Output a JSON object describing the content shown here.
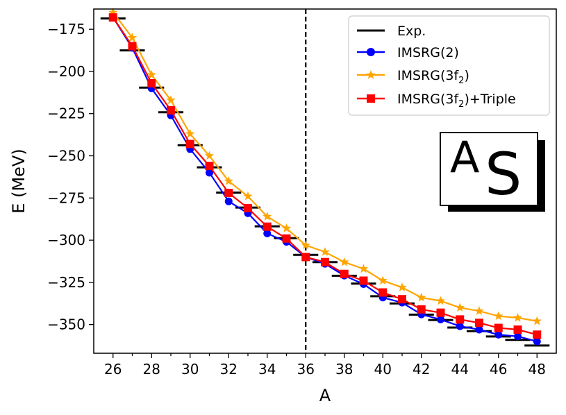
{
  "chart_data": {
    "type": "line",
    "xlabel": "A",
    "ylabel": "E (MeV)",
    "xlim": [
      25,
      49
    ],
    "ylim": [
      -367,
      -163
    ],
    "xticks": [
      26,
      28,
      30,
      32,
      34,
      36,
      38,
      40,
      42,
      44,
      46,
      48
    ],
    "yticks": [
      -175,
      -200,
      -225,
      -250,
      -275,
      -300,
      -325,
      -350
    ],
    "vline": 36,
    "legend_position": "top-right",
    "experimental": {
      "name": "Exp.",
      "color": "#000000",
      "x": [
        26,
        27,
        28,
        29,
        30,
        31,
        32,
        33,
        34,
        35,
        36,
        37,
        38,
        39,
        40,
        41,
        42,
        43,
        44,
        45,
        46,
        47,
        48
      ],
      "values": [
        -168.6,
        -187.5,
        -209.6,
        -224.2,
        -243.7,
        -256.8,
        -271.8,
        -280.7,
        -291.8,
        -298.8,
        -308.7,
        -313.0,
        -321.1,
        -325.7,
        -333.2,
        -337.5,
        -344.1,
        -347.3,
        -351.8,
        -353.9,
        -357.1,
        -359.1,
        -362.4
      ]
    },
    "series": [
      {
        "name": "IMSRG(2)",
        "color": "#0000ff",
        "marker": "circle",
        "x": [
          26,
          27,
          28,
          29,
          30,
          31,
          32,
          33,
          34,
          35,
          36,
          37,
          38,
          39,
          40,
          41,
          42,
          43,
          44,
          45,
          46,
          47,
          48
        ],
        "values": [
          -168,
          -186,
          -210,
          -226,
          -246,
          -260,
          -277,
          -284,
          -296,
          -301,
          -310,
          -314,
          -321,
          -326,
          -334,
          -337,
          -344,
          -347,
          -351,
          -353,
          -356,
          -357,
          -360
        ]
      },
      {
        "name": "IMSRG(3f2)",
        "color": "#ffa500",
        "marker": "star",
        "x": [
          26,
          27,
          28,
          29,
          30,
          31,
          32,
          33,
          34,
          35,
          36,
          37,
          38,
          39,
          40,
          41,
          42,
          43,
          44,
          45,
          46,
          47,
          48
        ],
        "values": [
          -165,
          -180,
          -202,
          -217,
          -237,
          -250,
          -265,
          -274,
          -286,
          -293,
          -303,
          -307,
          -313,
          -317,
          -324,
          -328,
          -334,
          -336,
          -340,
          -342,
          -345,
          -346,
          -348
        ]
      },
      {
        "name": "IMSRG(3f2)+Triple",
        "color": "#ff0000",
        "marker": "square",
        "x": [
          26,
          27,
          28,
          29,
          30,
          31,
          32,
          33,
          34,
          35,
          36,
          37,
          38,
          39,
          40,
          41,
          42,
          43,
          44,
          45,
          46,
          47,
          48
        ],
        "values": [
          -168,
          -185,
          -207,
          -223,
          -243,
          -256,
          -272,
          -281,
          -292,
          -299,
          -310,
          -313,
          -320,
          -324,
          -331,
          -335,
          -341,
          -343,
          -347,
          -349,
          -352,
          -353,
          -356
        ]
      }
    ],
    "legend_labels": [
      "Exp.",
      "IMSRG(2)",
      "IMSRG(3f",
      "IMSRG(3f"
    ],
    "legend_subscripts": [
      "",
      "",
      "2",
      "2"
    ],
    "legend_suffixes": [
      "",
      "",
      ")",
      ")+Triple"
    ],
    "logo": {
      "superscript": "A",
      "symbol": "S"
    }
  }
}
